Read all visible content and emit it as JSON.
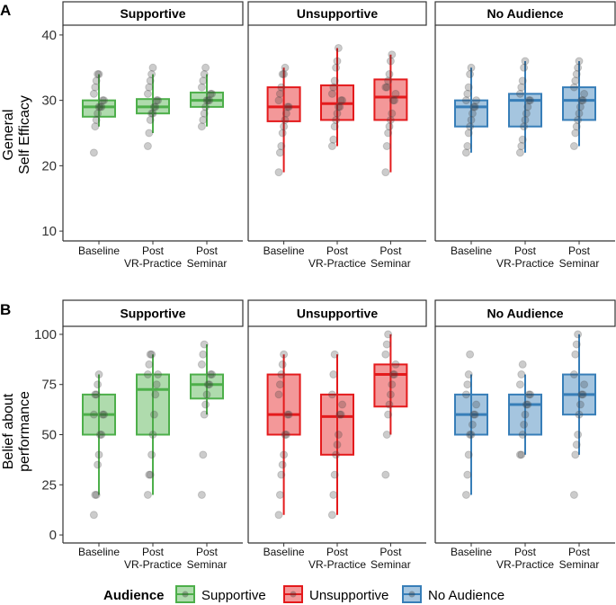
{
  "colors": {
    "Supportive": "#4daf4a",
    "Unsupportive": "#e41a1c",
    "No Audience": "#377eb8"
  },
  "legend": {
    "title": "Audience",
    "entries": [
      "Supportive",
      "Unsupportive",
      "No Audience"
    ]
  },
  "chart_data": [
    {
      "type": "boxplot",
      "panel_label": "A",
      "ylabel_lines": [
        "General",
        "Self Efficacy"
      ],
      "ylim": [
        8.5,
        41.5
      ],
      "yticks": [
        10,
        20,
        30,
        40
      ],
      "categories": [
        {
          "id": "baseline",
          "lines": [
            "Baseline"
          ]
        },
        {
          "id": "post-vr",
          "lines": [
            "Post",
            "VR-Practice"
          ]
        },
        {
          "id": "post-seminar",
          "lines": [
            "Post",
            "Seminar"
          ]
        }
      ],
      "facets": [
        {
          "name": "Supportive",
          "boxes": [
            {
              "q1": 27.5,
              "median": 29,
              "q3": 30,
              "lo": 26,
              "hi": 34,
              "points": [
                22,
                26,
                27,
                28,
                29,
                29,
                29,
                30,
                30,
                31,
                32,
                33,
                34,
                34
              ]
            },
            {
              "q1": 28,
              "median": 29,
              "q3": 30.2,
              "lo": 25,
              "hi": 34,
              "points": [
                23,
                25,
                27,
                28,
                28,
                29,
                29,
                30,
                30,
                31,
                32,
                33,
                34,
                35
              ]
            },
            {
              "q1": 29,
              "median": 30,
              "q3": 31.2,
              "lo": 26,
              "hi": 34,
              "points": [
                26,
                27,
                28,
                29,
                30,
                30,
                30,
                31,
                31,
                32,
                33,
                34,
                35
              ]
            }
          ]
        },
        {
          "name": "Unsupportive",
          "boxes": [
            {
              "q1": 26.8,
              "median": 29,
              "q3": 32,
              "lo": 19,
              "hi": 35,
              "points": [
                19,
                22,
                23,
                25,
                26,
                27,
                28,
                29,
                29,
                30,
                31,
                32,
                34,
                34,
                35
              ]
            },
            {
              "q1": 27,
              "median": 29.5,
              "q3": 32.3,
              "lo": 23,
              "hi": 38,
              "points": [
                23,
                24,
                26,
                27,
                28,
                29,
                29,
                30,
                30,
                31,
                32,
                33,
                35,
                36,
                38
              ]
            },
            {
              "q1": 27,
              "median": 30.5,
              "q3": 33.2,
              "lo": 19,
              "hi": 37,
              "points": [
                19,
                23,
                25,
                26,
                27,
                28,
                30,
                30,
                31,
                32,
                32,
                33,
                34,
                36,
                37
              ]
            }
          ]
        },
        {
          "name": "No Audience",
          "boxes": [
            {
              "q1": 26,
              "median": 29,
              "q3": 30,
              "lo": 22,
              "hi": 35,
              "points": [
                22,
                23,
                25,
                26,
                27,
                28,
                29,
                29,
                30,
                30,
                31,
                32,
                34,
                35
              ]
            },
            {
              "q1": 26,
              "median": 30,
              "q3": 31,
              "lo": 22,
              "hi": 36,
              "points": [
                22,
                23,
                24,
                26,
                27,
                28,
                29,
                30,
                30,
                31,
                32,
                33,
                35,
                36
              ]
            },
            {
              "q1": 27,
              "median": 30,
              "q3": 32,
              "lo": 23,
              "hi": 36,
              "points": [
                23,
                25,
                26,
                27,
                28,
                29,
                30,
                30,
                31,
                32,
                33,
                34,
                35,
                36
              ]
            }
          ]
        }
      ]
    },
    {
      "type": "boxplot",
      "panel_label": "B",
      "ylabel_lines": [
        "Belief about",
        "performance"
      ],
      "ylim": [
        -4,
        104
      ],
      "yticks": [
        0,
        25,
        50,
        75,
        100
      ],
      "categories": [
        {
          "id": "baseline",
          "lines": [
            "Baseline"
          ]
        },
        {
          "id": "post-vr",
          "lines": [
            "Post",
            "VR-Practice"
          ]
        },
        {
          "id": "post-seminar",
          "lines": [
            "Post",
            "Seminar"
          ]
        }
      ],
      "facets": [
        {
          "name": "Supportive",
          "boxes": [
            {
              "q1": 50,
              "median": 60,
              "q3": 70,
              "lo": 20,
              "hi": 80,
              "points": [
                10,
                20,
                20,
                35,
                40,
                50,
                50,
                60,
                60,
                60,
                70,
                70,
                75,
                80
              ]
            },
            {
              "q1": 50,
              "median": 72.5,
              "q3": 80,
              "lo": 20,
              "hi": 90,
              "points": [
                20,
                30,
                30,
                40,
                50,
                60,
                70,
                75,
                80,
                80,
                85,
                90,
                90
              ]
            },
            {
              "q1": 68,
              "median": 75,
              "q3": 80,
              "lo": 60,
              "hi": 95,
              "points": [
                20,
                40,
                60,
                65,
                70,
                75,
                75,
                80,
                80,
                85,
                90,
                95
              ]
            }
          ]
        },
        {
          "name": "Unsupportive",
          "boxes": [
            {
              "q1": 50,
              "median": 60,
              "q3": 80,
              "lo": 10,
              "hi": 90,
              "points": [
                10,
                20,
                30,
                35,
                40,
                50,
                50,
                60,
                60,
                70,
                75,
                80,
                85,
                90
              ]
            },
            {
              "q1": 40,
              "median": 59,
              "q3": 70,
              "lo": 10,
              "hi": 90,
              "points": [
                10,
                20,
                30,
                40,
                45,
                50,
                60,
                60,
                65,
                70,
                80,
                90
              ]
            },
            {
              "q1": 64,
              "median": 80,
              "q3": 85,
              "lo": 50,
              "hi": 100,
              "points": [
                30,
                50,
                60,
                65,
                70,
                75,
                80,
                80,
                85,
                90,
                95,
                100
              ]
            }
          ]
        },
        {
          "name": "No Audience",
          "boxes": [
            {
              "q1": 50,
              "median": 60,
              "q3": 70,
              "lo": 20,
              "hi": 80,
              "points": [
                20,
                30,
                40,
                50,
                50,
                55,
                60,
                60,
                65,
                70,
                75,
                80,
                90
              ]
            },
            {
              "q1": 50,
              "median": 65,
              "q3": 70,
              "lo": 40,
              "hi": 80,
              "points": [
                40,
                40,
                50,
                55,
                60,
                65,
                65,
                70,
                70,
                75,
                80,
                85
              ]
            },
            {
              "q1": 60,
              "median": 70,
              "q3": 80,
              "lo": 40,
              "hi": 100,
              "points": [
                20,
                40,
                45,
                50,
                60,
                65,
                70,
                70,
                75,
                80,
                90,
                95,
                100
              ]
            }
          ]
        }
      ]
    }
  ]
}
